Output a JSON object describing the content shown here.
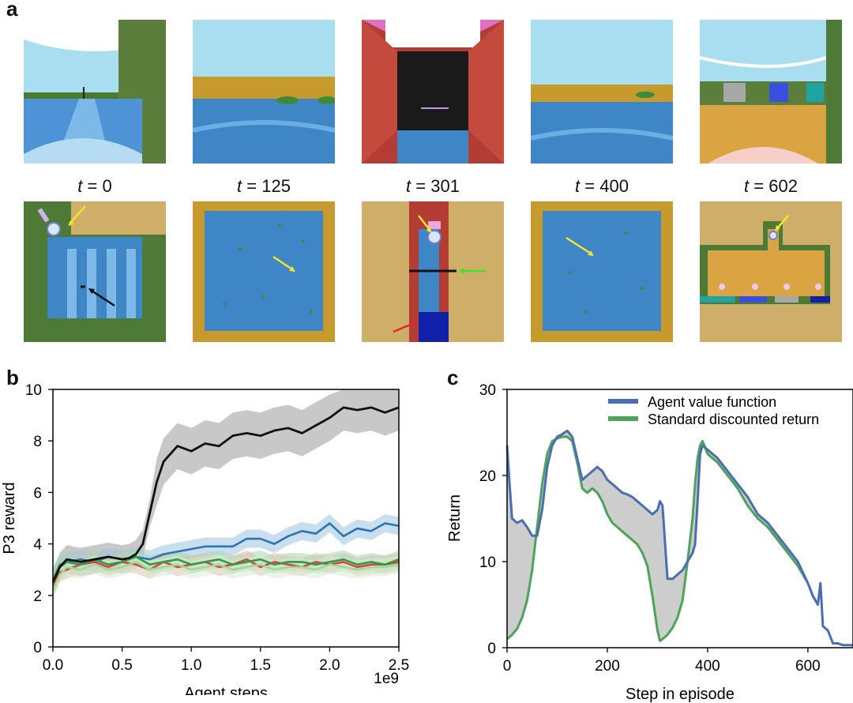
{
  "figure": {
    "panel_a_label": "a",
    "panel_b_label": "b",
    "panel_c_label": "c"
  },
  "panel_a": {
    "frames": [
      {
        "t_var": "t",
        "t_eq": " = 0"
      },
      {
        "t_var": "t",
        "t_eq": " = 125"
      },
      {
        "t_var": "t",
        "t_eq": " = 301"
      },
      {
        "t_var": "t",
        "t_eq": " = 400"
      },
      {
        "t_var": "t",
        "t_eq": " = 602"
      }
    ],
    "colors": {
      "sky": "#a8def0",
      "grass": "#4a7a2e",
      "water": "#3f86c6",
      "sand": "#cfae6a",
      "gold": "#c79a2e",
      "brick": "#b33c34"
    }
  },
  "chart_data": [
    {
      "id": "b",
      "type": "line",
      "title": "",
      "xlabel": "Agent steps",
      "ylabel": "P3 reward",
      "x_multiplier_label": "1e9",
      "xlim": [
        0.0,
        2.5
      ],
      "ylim": [
        0,
        10
      ],
      "xticks": [
        "0.0",
        "0.5",
        "1.0",
        "1.5",
        "2.0",
        "2.5"
      ],
      "yticks": [
        "0",
        "2",
        "4",
        "6",
        "8",
        "10"
      ],
      "series": [
        {
          "name": "black",
          "color": "#111111",
          "band": "#9a9a9a",
          "x": [
            0.0,
            0.05,
            0.1,
            0.2,
            0.3,
            0.4,
            0.5,
            0.55,
            0.6,
            0.65,
            0.7,
            0.75,
            0.8,
            0.9,
            1.0,
            1.1,
            1.2,
            1.3,
            1.4,
            1.5,
            1.6,
            1.7,
            1.8,
            1.9,
            2.0,
            2.1,
            2.2,
            2.3,
            2.4,
            2.5
          ],
          "y": [
            2.5,
            3.1,
            3.4,
            3.3,
            3.4,
            3.5,
            3.4,
            3.45,
            3.6,
            4.0,
            5.2,
            6.4,
            7.2,
            7.8,
            7.6,
            7.9,
            7.8,
            8.2,
            8.3,
            8.2,
            8.4,
            8.5,
            8.3,
            8.6,
            8.9,
            9.3,
            9.2,
            9.3,
            9.1,
            9.3
          ]
        },
        {
          "name": "blue",
          "color": "#2c74b3",
          "band": "#9cc3e2",
          "x": [
            0.0,
            0.05,
            0.1,
            0.2,
            0.3,
            0.4,
            0.5,
            0.6,
            0.7,
            0.8,
            0.9,
            1.0,
            1.1,
            1.2,
            1.3,
            1.4,
            1.5,
            1.6,
            1.7,
            1.8,
            1.9,
            2.0,
            2.1,
            2.2,
            2.3,
            2.4,
            2.5
          ],
          "y": [
            2.5,
            3.1,
            3.3,
            3.4,
            3.3,
            3.5,
            3.4,
            3.5,
            3.4,
            3.6,
            3.7,
            3.8,
            3.9,
            3.9,
            3.9,
            4.2,
            4.2,
            4.0,
            4.3,
            4.5,
            4.4,
            4.8,
            4.3,
            4.6,
            4.5,
            4.8,
            4.7
          ]
        },
        {
          "name": "red",
          "color": "#d9453b",
          "band": "#f2b4ae",
          "x": [
            0.0,
            0.05,
            0.1,
            0.2,
            0.3,
            0.4,
            0.5,
            0.6,
            0.7,
            0.8,
            0.9,
            1.0,
            1.1,
            1.2,
            1.3,
            1.4,
            1.5,
            1.6,
            1.7,
            1.8,
            1.9,
            2.0,
            2.1,
            2.2,
            2.3,
            2.4,
            2.5
          ],
          "y": [
            2.3,
            2.9,
            3.0,
            3.2,
            3.3,
            3.1,
            3.3,
            3.2,
            3.0,
            3.3,
            3.1,
            3.2,
            3.3,
            3.1,
            3.2,
            3.4,
            3.1,
            3.3,
            3.2,
            3.1,
            3.3,
            3.2,
            3.3,
            3.1,
            3.2,
            3.2,
            3.3
          ]
        },
        {
          "name": "green",
          "color": "#2f9a48",
          "band": "#a8d7b0",
          "x": [
            0.0,
            0.05,
            0.1,
            0.2,
            0.3,
            0.4,
            0.5,
            0.6,
            0.7,
            0.8,
            0.9,
            1.0,
            1.1,
            1.2,
            1.3,
            1.4,
            1.5,
            1.6,
            1.7,
            1.8,
            1.9,
            2.0,
            2.1,
            2.2,
            2.3,
            2.4,
            2.5
          ],
          "y": [
            2.6,
            3.2,
            3.3,
            3.2,
            3.4,
            3.2,
            3.3,
            3.5,
            3.2,
            3.3,
            3.4,
            3.2,
            3.3,
            3.4,
            3.2,
            3.3,
            3.4,
            3.2,
            3.3,
            3.3,
            3.2,
            3.3,
            3.4,
            3.2,
            3.3,
            3.2,
            3.4
          ]
        },
        {
          "name": "light-green",
          "color": "#9ed99a",
          "band": "#d6efcf",
          "x": [
            0.0,
            0.05,
            0.1,
            0.2,
            0.3,
            0.4,
            0.5,
            0.6,
            0.7,
            0.8,
            0.9,
            1.0,
            1.1,
            1.2,
            1.3,
            1.4,
            1.5,
            1.6,
            1.7,
            1.8,
            1.9,
            2.0,
            2.1,
            2.2,
            2.3,
            2.4,
            2.5
          ],
          "y": [
            2.2,
            2.8,
            3.1,
            3.0,
            3.2,
            3.0,
            3.1,
            3.3,
            3.0,
            3.1,
            3.2,
            3.0,
            3.1,
            3.2,
            3.0,
            3.1,
            3.2,
            3.0,
            3.1,
            3.1,
            3.0,
            3.2,
            3.1,
            3.0,
            3.1,
            3.1,
            3.2
          ]
        }
      ]
    },
    {
      "id": "c",
      "type": "line",
      "title": "",
      "xlabel": "Step in episode",
      "ylabel": "Return",
      "xlim": [
        0,
        690
      ],
      "ylim": [
        0,
        30
      ],
      "xticks": [
        "0",
        "200",
        "400",
        "600"
      ],
      "yticks": [
        "0",
        "10",
        "20",
        "30"
      ],
      "legend_position": "top-right",
      "fill_between": {
        "color": "#c8c8c8"
      },
      "series": [
        {
          "name": "Agent value function",
          "color": "#4a6db5",
          "x": [
            0,
            5,
            10,
            20,
            30,
            40,
            50,
            60,
            70,
            80,
            90,
            100,
            110,
            120,
            130,
            140,
            150,
            160,
            170,
            180,
            190,
            200,
            210,
            220,
            230,
            240,
            250,
            260,
            270,
            280,
            290,
            300,
            305,
            310,
            320,
            330,
            340,
            350,
            360,
            370,
            375,
            380,
            385,
            390,
            400,
            420,
            440,
            460,
            480,
            500,
            520,
            540,
            560,
            580,
            600,
            610,
            620,
            625,
            630,
            640,
            650,
            660,
            670,
            690
          ],
          "y": [
            23.5,
            19,
            15,
            14.5,
            14.8,
            14,
            13,
            13,
            16,
            21,
            23.5,
            24.5,
            24.8,
            25.2,
            24.5,
            22,
            19.5,
            20,
            20.5,
            21,
            20.5,
            19.5,
            19,
            18.5,
            18,
            17.8,
            17.5,
            17,
            16.5,
            16,
            15.5,
            16,
            17,
            16.5,
            8,
            8,
            8.5,
            9,
            10,
            11,
            12,
            17,
            22.5,
            23.5,
            23,
            22,
            20.5,
            19,
            17.5,
            15.5,
            14.5,
            13,
            11.5,
            10,
            7.5,
            6,
            5,
            7.5,
            2.5,
            2,
            0.5,
            0.5,
            0.3,
            0.3
          ]
        },
        {
          "name": "Standard discounted return",
          "color": "#4ca45a",
          "x": [
            0,
            10,
            20,
            30,
            40,
            50,
            60,
            70,
            80,
            90,
            100,
            110,
            120,
            130,
            140,
            150,
            160,
            170,
            180,
            190,
            200,
            210,
            220,
            230,
            240,
            250,
            260,
            270,
            280,
            290,
            300,
            305,
            310,
            320,
            330,
            340,
            350,
            360,
            370,
            375,
            380,
            385,
            390,
            400,
            420,
            440,
            460,
            480,
            500,
            520,
            540,
            560,
            580,
            600,
            610,
            620
          ],
          "y": [
            1,
            1.5,
            2.2,
            3.5,
            5.5,
            9,
            14,
            19,
            22.5,
            24,
            24.3,
            24.5,
            24.5,
            24,
            21.5,
            18.5,
            18,
            18.5,
            18,
            17,
            15.5,
            14.5,
            14,
            13.5,
            13,
            12.5,
            12,
            11,
            9.5,
            6,
            2,
            0.8,
            1,
            1.5,
            2.3,
            3.5,
            5.5,
            10,
            15,
            19,
            22,
            23.5,
            24,
            22.5,
            21.5,
            20,
            18.5,
            16.5,
            15,
            14,
            12.5,
            11,
            9.5,
            7.5,
            6,
            5
          ]
        }
      ]
    }
  ]
}
